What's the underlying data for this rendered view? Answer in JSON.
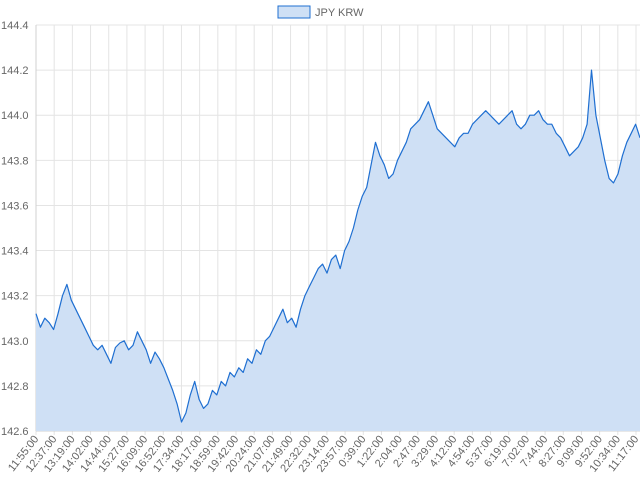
{
  "chart_data": {
    "type": "area",
    "legend": {
      "position": "top-center"
    },
    "grid": true,
    "ylim": [
      142.6,
      144.4
    ],
    "y_ticks": [
      "144.4",
      "144.2",
      "144.0",
      "143.8",
      "143.6",
      "143.4",
      "143.2",
      "143.0",
      "142.8",
      "142.6"
    ],
    "x_tick_labels": [
      "11:55:00",
      "12:37:00",
      "13:19:00",
      "14:02:00",
      "14:44:00",
      "15:27:00",
      "16:09:00",
      "16:52:00",
      "17:34:00",
      "18:17:00",
      "18:59:00",
      "19:42:00",
      "20:24:00",
      "21:07:00",
      "21:49:00",
      "22:32:00",
      "23:14:00",
      "23:57:00",
      "0:39:00",
      "1:22:00",
      "2:04:00",
      "2:47:00",
      "3:29:00",
      "4:12:00",
      "4:54:00",
      "5:37:00",
      "6:19:00",
      "7:02:00",
      "7:44:00",
      "8:27:00",
      "9:09:00",
      "9:52:00",
      "10:34:00",
      "11:17:00"
    ],
    "series": [
      {
        "name": "JPY KRW",
        "color": "#1f6fd1",
        "fill": "#cfe0f5",
        "values": [
          143.12,
          143.06,
          143.1,
          143.08,
          143.05,
          143.12,
          143.2,
          143.25,
          143.18,
          143.14,
          143.1,
          143.06,
          143.02,
          142.98,
          142.96,
          142.98,
          142.94,
          142.9,
          142.97,
          142.99,
          143.0,
          142.96,
          142.98,
          143.04,
          143.0,
          142.96,
          142.9,
          142.95,
          142.92,
          142.88,
          142.83,
          142.78,
          142.72,
          142.64,
          142.68,
          142.76,
          142.82,
          142.74,
          142.7,
          142.72,
          142.78,
          142.76,
          142.82,
          142.8,
          142.86,
          142.84,
          142.88,
          142.86,
          142.92,
          142.9,
          142.96,
          142.94,
          143.0,
          143.02,
          143.06,
          143.1,
          143.14,
          143.08,
          143.1,
          143.06,
          143.14,
          143.2,
          143.24,
          143.28,
          143.32,
          143.34,
          143.3,
          143.36,
          143.38,
          143.32,
          143.4,
          143.44,
          143.5,
          143.58,
          143.64,
          143.68,
          143.78,
          143.88,
          143.82,
          143.78,
          143.72,
          143.74,
          143.8,
          143.84,
          143.88,
          143.94,
          143.96,
          143.98,
          144.02,
          144.06,
          144.0,
          143.94,
          143.92,
          143.9,
          143.88,
          143.86,
          143.9,
          143.92,
          143.92,
          143.96,
          143.98,
          144.0,
          144.02,
          144.0,
          143.98,
          143.96,
          143.98,
          144.0,
          144.02,
          143.96,
          143.94,
          143.96,
          144.0,
          144.0,
          144.02,
          143.98,
          143.96,
          143.96,
          143.92,
          143.9,
          143.86,
          143.82,
          143.84,
          143.86,
          143.9,
          143.96,
          144.2,
          144.0,
          143.9,
          143.8,
          143.72,
          143.7,
          143.74,
          143.82,
          143.88,
          143.92,
          143.96,
          143.9
        ]
      }
    ]
  }
}
